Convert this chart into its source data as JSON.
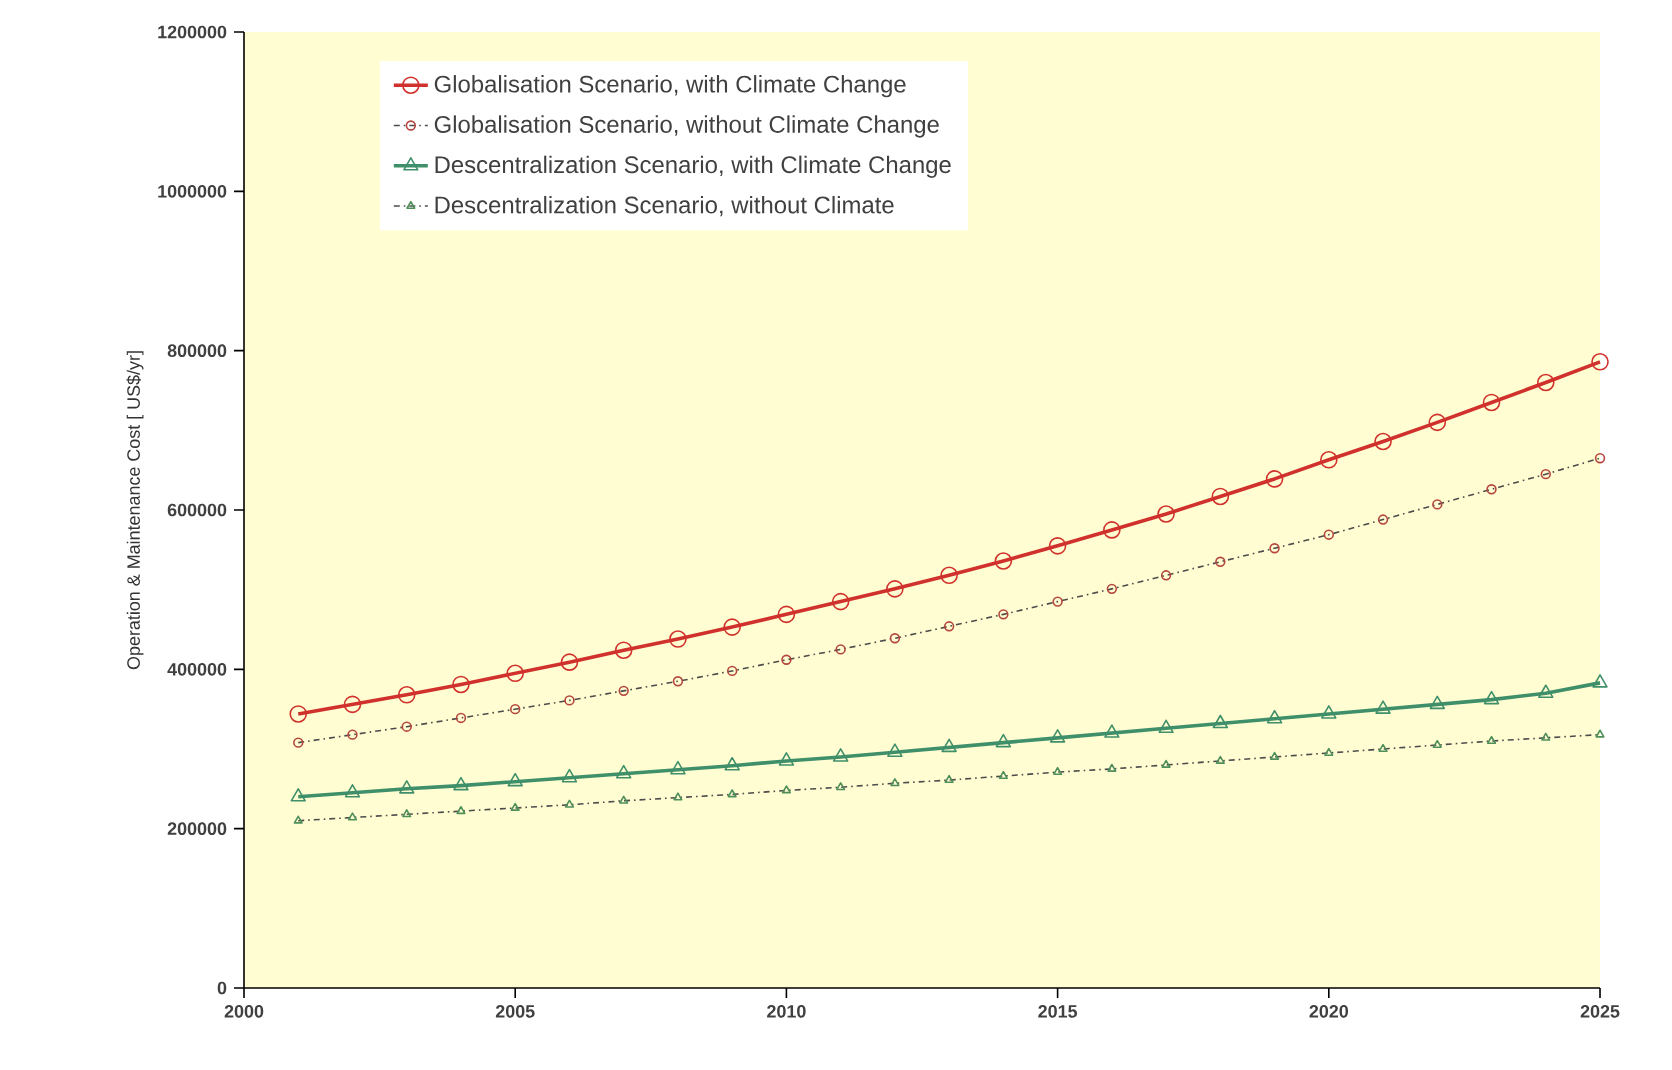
{
  "chart_data": {
    "type": "line",
    "ylabel": "Operation & Maintenance Cost [ US$/yr]",
    "x": [
      2001,
      2002,
      2003,
      2004,
      2005,
      2006,
      2007,
      2008,
      2009,
      2010,
      2011,
      2012,
      2013,
      2014,
      2015,
      2016,
      2017,
      2018,
      2019,
      2020,
      2021,
      2022,
      2023,
      2024,
      2025
    ],
    "xlim": [
      2000,
      2025
    ],
    "xticks": [
      2000,
      2005,
      2010,
      2015,
      2020,
      2025
    ],
    "ylim": [
      0,
      1200000
    ],
    "yticks": [
      0,
      200000,
      400000,
      600000,
      800000,
      1000000,
      1200000
    ],
    "legend": "top left",
    "grid": false,
    "series": [
      {
        "name": "Globalisation Scenario, with      Climate Change",
        "color": "#d0312d",
        "marker": "circle",
        "line_style": "solid",
        "values": [
          344000,
          356000,
          368000,
          381000,
          395000,
          409000,
          424000,
          438000,
          453000,
          469000,
          485000,
          501000,
          518000,
          536000,
          555000,
          575000,
          595000,
          617000,
          639000,
          663000,
          686000,
          710000,
          735000,
          760000,
          786000
        ]
      },
      {
        "name": "Globalisation Scenario, without Climate Change",
        "color": "#b5463f",
        "marker": "circle",
        "line_style": "dotted",
        "values": [
          308000,
          318000,
          328000,
          339000,
          350000,
          361000,
          373000,
          385000,
          398000,
          412000,
          425000,
          439000,
          454000,
          469000,
          485000,
          501000,
          518000,
          535000,
          552000,
          569000,
          588000,
          607000,
          626000,
          645000,
          665000
        ]
      },
      {
        "name": "Descentralization  Scenario, with Climate Change",
        "color": "#3f8f6a",
        "marker": "triangle",
        "line_style": "solid",
        "values": [
          240000,
          245000,
          250000,
          254000,
          259000,
          264000,
          269000,
          274000,
          279000,
          285000,
          290000,
          296000,
          302000,
          308000,
          314000,
          320000,
          326000,
          332000,
          338000,
          344000,
          350000,
          356000,
          362000,
          370000,
          383000
        ]
      },
      {
        "name": "Descentralization Scenario, without Climate",
        "color": "#4f8f5a",
        "marker": "triangle",
        "line_style": "dotted",
        "values": [
          210000,
          214000,
          218000,
          222000,
          226000,
          230000,
          235000,
          239000,
          243000,
          248000,
          252000,
          257000,
          261000,
          266000,
          271000,
          275000,
          280000,
          285000,
          290000,
          295000,
          300000,
          305000,
          310000,
          314000,
          318000
        ]
      }
    ]
  }
}
